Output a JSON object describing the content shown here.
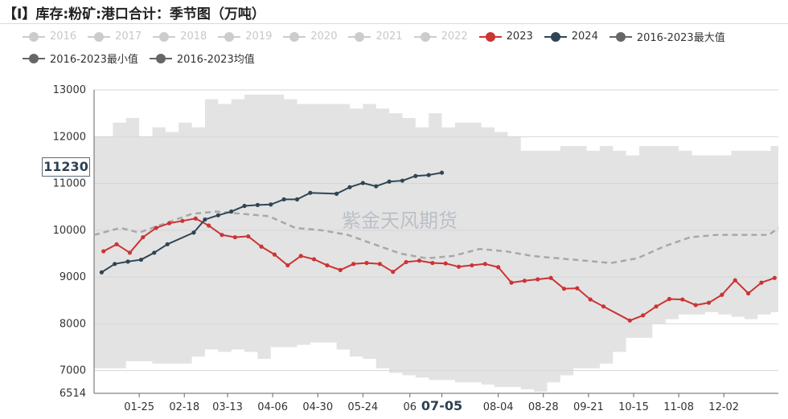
{
  "title": "【I】库存:粉矿:港口合计：季节图（万吨）",
  "watermark": "紫金天风期货",
  "highlight": {
    "value_label": "11230",
    "x_label": "07-05"
  },
  "legend": [
    {
      "name": "2016",
      "color": "#cccccc",
      "active": false
    },
    {
      "name": "2017",
      "color": "#cccccc",
      "active": false
    },
    {
      "name": "2018",
      "color": "#cccccc",
      "active": false
    },
    {
      "name": "2019",
      "color": "#cccccc",
      "active": false
    },
    {
      "name": "2020",
      "color": "#cccccc",
      "active": false
    },
    {
      "name": "2021",
      "color": "#cccccc",
      "active": false
    },
    {
      "name": "2022",
      "color": "#cccccc",
      "active": false
    },
    {
      "name": "2023",
      "color": "#cc3333",
      "active": true
    },
    {
      "name": "2024",
      "color": "#2f4554",
      "active": true
    },
    {
      "name": "2016-2023最大值",
      "color": "#666666",
      "active": true
    },
    {
      "name": "2016-2023最小值",
      "color": "#666666",
      "active": true
    },
    {
      "name": "2016-2023均值",
      "color": "#666666",
      "active": true
    }
  ],
  "chart_data": {
    "type": "line",
    "title": "【I】库存:粉矿:港口合计：季节图（万吨）",
    "xlabel": "",
    "ylabel": "",
    "xlim": [
      "01-01",
      "12-31"
    ],
    "ylim": [
      6514,
      13000
    ],
    "yticks": [
      6514,
      7000,
      8000,
      9000,
      10000,
      11000,
      12000,
      13000
    ],
    "xticks": [
      "01-25",
      "02-18",
      "03-13",
      "04-06",
      "04-30",
      "05-24",
      "06",
      "07-05",
      "08-04",
      "08-28",
      "09-21",
      "10-15",
      "11-08",
      "12-02"
    ],
    "grid": true,
    "legend_position": "top",
    "band_max": {
      "x": [
        "01-01",
        "01-11",
        "01-18",
        "01-25",
        "02-01",
        "02-08",
        "02-15",
        "02-22",
        "03-01",
        "03-08",
        "03-15",
        "03-22",
        "03-29",
        "04-05",
        "04-12",
        "04-19",
        "04-26",
        "05-03",
        "05-10",
        "05-17",
        "05-24",
        "05-31",
        "06-07",
        "06-14",
        "06-21",
        "06-28",
        "07-05",
        "07-12",
        "07-19",
        "07-26",
        "08-02",
        "08-09",
        "08-16",
        "08-23",
        "08-30",
        "09-06",
        "09-13",
        "09-20",
        "09-27",
        "10-04",
        "10-11",
        "10-18",
        "10-25",
        "11-01",
        "11-08",
        "11-15",
        "11-22",
        "11-29",
        "12-06",
        "12-13",
        "12-20",
        "12-27",
        "12-31"
      ],
      "y": [
        12000,
        12300,
        12400,
        12000,
        12200,
        12100,
        12300,
        12200,
        12800,
        12700,
        12800,
        12900,
        12900,
        12900,
        12800,
        12700,
        12700,
        12700,
        12700,
        12600,
        12700,
        12600,
        12500,
        12400,
        12200,
        12500,
        12200,
        12300,
        12300,
        12200,
        12100,
        12000,
        11700,
        11700,
        11700,
        11800,
        11800,
        11700,
        11800,
        11700,
        11600,
        11800,
        11800,
        11800,
        11700,
        11600,
        11600,
        11600,
        11700,
        11700,
        11700,
        11800,
        11800
      ]
    },
    "band_min": {
      "x": [
        "01-01",
        "01-11",
        "01-18",
        "01-25",
        "02-01",
        "02-08",
        "02-15",
        "02-22",
        "03-01",
        "03-08",
        "03-15",
        "03-22",
        "03-29",
        "04-05",
        "04-12",
        "04-19",
        "04-26",
        "05-03",
        "05-10",
        "05-17",
        "05-24",
        "05-31",
        "06-07",
        "06-14",
        "06-21",
        "06-28",
        "07-05",
        "07-12",
        "07-19",
        "07-26",
        "08-02",
        "08-09",
        "08-16",
        "08-23",
        "08-30",
        "09-06",
        "09-13",
        "09-20",
        "09-27",
        "10-04",
        "10-11",
        "10-18",
        "10-25",
        "11-01",
        "11-08",
        "11-15",
        "11-22",
        "11-29",
        "12-06",
        "12-13",
        "12-20",
        "12-27",
        "12-31"
      ],
      "y": [
        7050,
        7050,
        7200,
        7200,
        7150,
        7150,
        7150,
        7300,
        7450,
        7400,
        7450,
        7400,
        7250,
        7500,
        7500,
        7550,
        7600,
        7600,
        7450,
        7300,
        7250,
        7050,
        6950,
        6900,
        6850,
        6800,
        6800,
        6750,
        6750,
        6700,
        6650,
        6650,
        6600,
        6550,
        6750,
        6900,
        7050,
        7050,
        7150,
        7400,
        7700,
        7700,
        8000,
        8100,
        8200,
        8200,
        8250,
        8200,
        8150,
        8100,
        8200,
        8250,
        8400
      ]
    },
    "series": [
      {
        "name": "2016-2023均值",
        "style": "dashed",
        "x": [
          "01-01",
          "01-15",
          "01-25",
          "02-08",
          "02-22",
          "03-07",
          "03-21",
          "04-04",
          "04-18",
          "05-02",
          "05-16",
          "05-30",
          "06-13",
          "06-27",
          "07-11",
          "07-25",
          "08-08",
          "08-22",
          "09-05",
          "09-19",
          "10-03",
          "10-17",
          "10-31",
          "11-14",
          "11-28",
          "12-12",
          "12-26",
          "12-31"
        ],
        "y": [
          9900,
          10050,
          9950,
          10150,
          10350,
          10400,
          10350,
          10300,
          10050,
          10000,
          9900,
          9700,
          9500,
          9400,
          9450,
          9600,
          9550,
          9450,
          9400,
          9350,
          9300,
          9400,
          9650,
          9850,
          9900,
          9900,
          9900,
          10050
        ]
      },
      {
        "name": "2023",
        "x": [
          "01-06",
          "01-13",
          "01-20",
          "01-27",
          "02-03",
          "02-10",
          "02-17",
          "02-24",
          "03-03",
          "03-10",
          "03-17",
          "03-24",
          "03-31",
          "04-07",
          "04-14",
          "04-21",
          "04-28",
          "05-05",
          "05-12",
          "05-19",
          "05-26",
          "06-02",
          "06-09",
          "06-16",
          "06-23",
          "06-30",
          "07-07",
          "07-14",
          "07-21",
          "07-28",
          "08-04",
          "08-11",
          "08-18",
          "08-25",
          "09-01",
          "09-08",
          "09-15",
          "09-22",
          "09-29",
          "10-13",
          "10-20",
          "10-27",
          "11-03",
          "11-10",
          "11-17",
          "11-24",
          "12-01",
          "12-08",
          "12-15",
          "12-22",
          "12-29"
        ],
        "y": [
          9550,
          9700,
          9520,
          9850,
          10050,
          10150,
          10200,
          10250,
          10100,
          9900,
          9850,
          9870,
          9650,
          9480,
          9250,
          9450,
          9380,
          9250,
          9150,
          9280,
          9300,
          9280,
          9110,
          9320,
          9350,
          9300,
          9290,
          9220,
          9250,
          9280,
          9210,
          8880,
          8920,
          8950,
          8980,
          8750,
          8760,
          8520,
          8370,
          8070,
          8180,
          8370,
          8530,
          8520,
          8400,
          8450,
          8620,
          8930,
          8650,
          8880,
          8980
        ]
      },
      {
        "name": "2024",
        "x": [
          "01-05",
          "01-12",
          "01-19",
          "01-26",
          "02-02",
          "02-09",
          "02-23",
          "03-01",
          "03-08",
          "03-15",
          "03-22",
          "03-29",
          "04-05",
          "04-12",
          "04-19",
          "04-26",
          "05-10",
          "05-17",
          "05-24",
          "05-31",
          "06-07",
          "06-14",
          "06-21",
          "06-28",
          "07-05"
        ],
        "y": [
          9100,
          9280,
          9330,
          9370,
          9520,
          9700,
          9950,
          10230,
          10320,
          10400,
          10520,
          10540,
          10550,
          10660,
          10660,
          10800,
          10780,
          10920,
          11010,
          10940,
          11040,
          11060,
          11160,
          11180,
          11230
        ]
      }
    ]
  }
}
